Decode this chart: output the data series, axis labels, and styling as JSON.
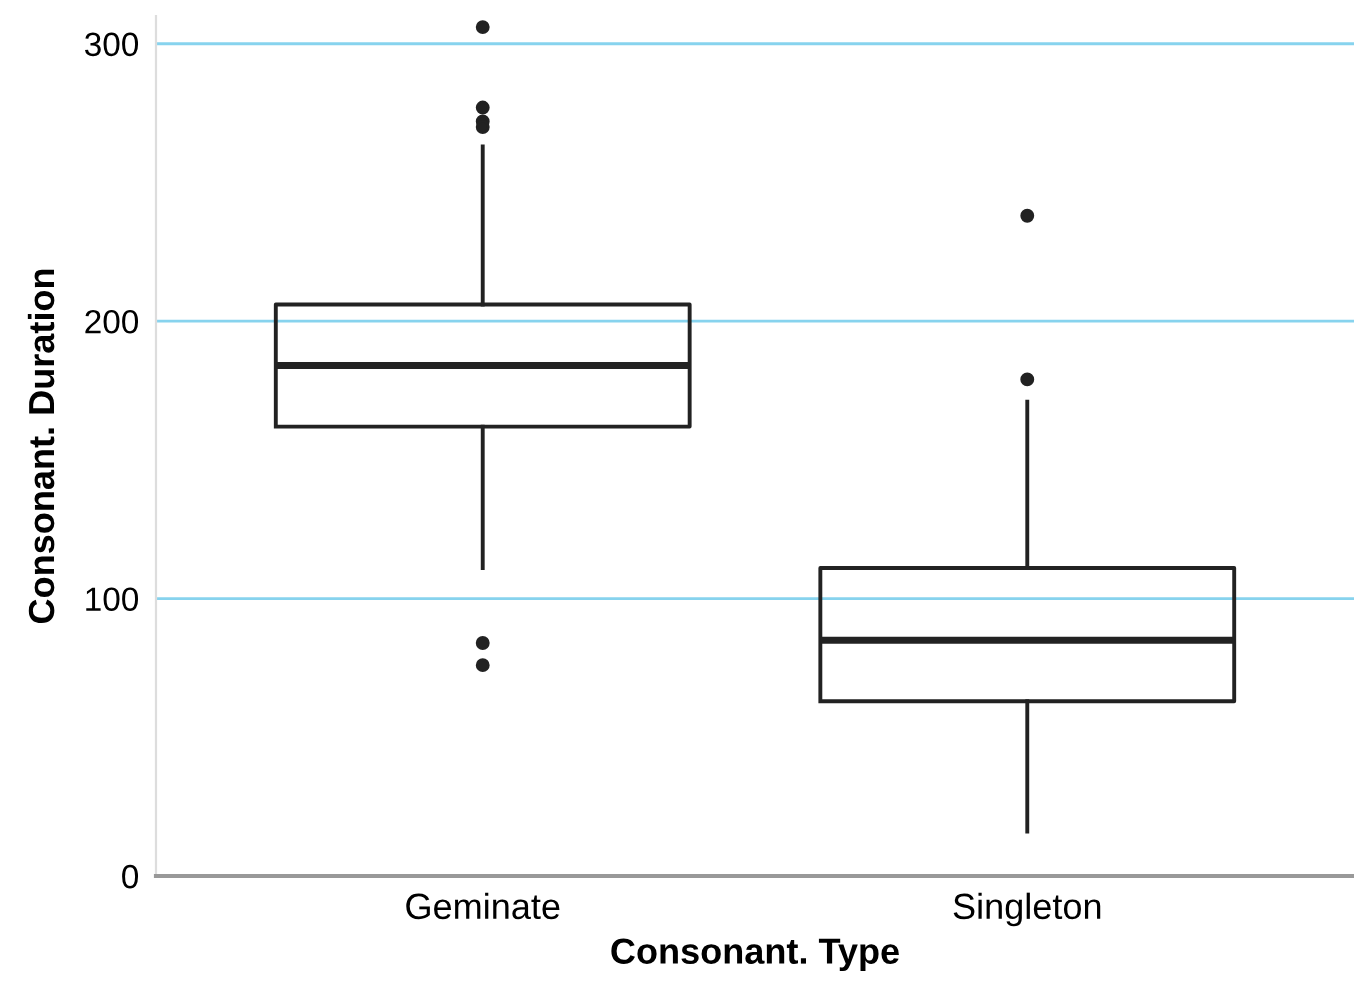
{
  "chart_data": {
    "type": "box",
    "xlabel": "Consonant. Type",
    "ylabel": "Consonant. Duration",
    "categories": [
      "Geminate",
      "Singleton"
    ],
    "boxes": [
      {
        "low": 111,
        "q1": 162,
        "median": 184,
        "q3": 206,
        "high": 263,
        "outliers": [
          306,
          277,
          272,
          270,
          84,
          76
        ]
      },
      {
        "low": 16,
        "q1": 63,
        "median": 85,
        "q3": 111,
        "high": 171,
        "outliers": [
          238,
          179
        ]
      }
    ],
    "color": "#222222",
    "ylim": [
      0,
      310
    ],
    "yticks": [
      0,
      100,
      200,
      300
    ],
    "grid": "y"
  }
}
